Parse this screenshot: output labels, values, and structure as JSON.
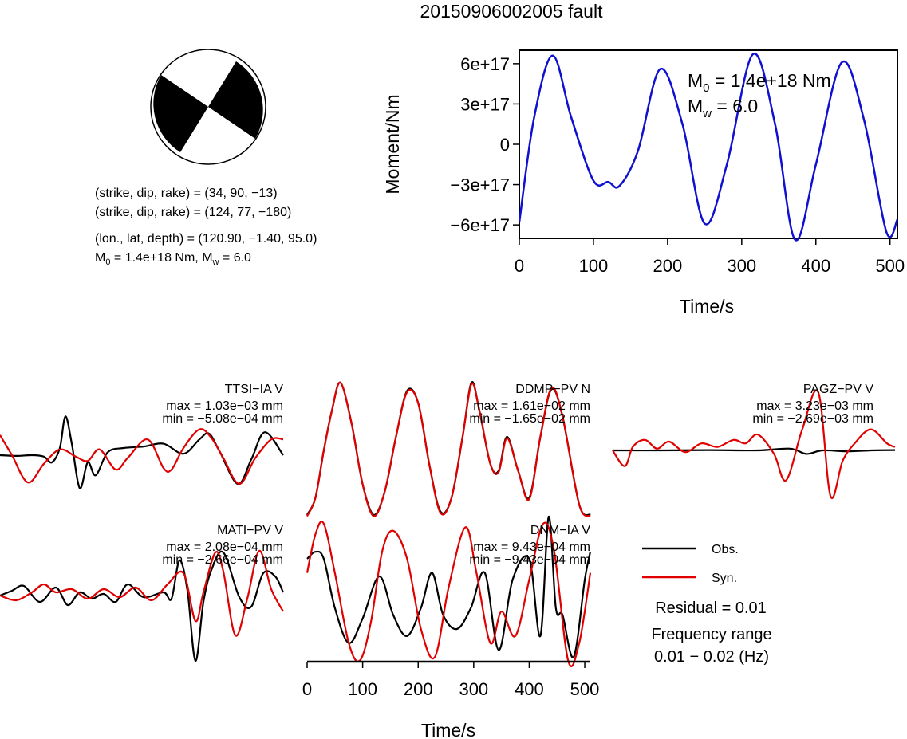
{
  "title": "20150906002005 fault",
  "mechanism": {
    "plane1": "(strike, dip, rake) = (34, 90, −13)",
    "plane2": "(strike, dip, rake) = (124, 77, −180)",
    "location": "(lon., lat, depth) = (120.90, −1.40, 95.0)",
    "m0_prefix": "M",
    "m0_sub": "0",
    "m0_value": " =  1.4e+18 Nm, M",
    "mw_sub": "w",
    "mw_value": " = 6.0"
  },
  "stf": {
    "ylabel": "Moment/Nm",
    "xlabel": "Time/s",
    "m0_label": "M",
    "m0_sub": "0",
    "m0_text": " =  1.4e+18 Nm",
    "mw_label": "M",
    "mw_sub": "w",
    "mw_text": " = 6.0"
  },
  "waveform_xlabel": "Time/s",
  "legend": {
    "obs": "Obs.",
    "syn": "Syn.",
    "residual": "Residual = 0.01",
    "freq_title": "Frequency range",
    "freq_value": "0.01 − 0.02 (Hz)"
  },
  "colors": {
    "obs": "#000000",
    "syn": "#e00000",
    "stf": "#1010d0"
  },
  "chart_data": [
    {
      "type": "line",
      "name": "source time function",
      "xlabel": "Time/s",
      "ylabel": "Moment/Nm",
      "xlim": [
        0,
        510
      ],
      "ylim": [
        -7e+17,
        7e+17
      ],
      "xticks": [
        0,
        100,
        200,
        300,
        400,
        500
      ],
      "yticks": [
        -6e+17,
        -3e+17,
        0,
        3e+17,
        6e+17
      ],
      "ytick_labels": [
        "−6e+17",
        "−3e+17",
        "0",
        "3e+17",
        "6e+17"
      ],
      "x": [
        0,
        20,
        45,
        70,
        100,
        120,
        135,
        160,
        190,
        220,
        250,
        280,
        315,
        345,
        372,
        400,
        435,
        465,
        495,
        510
      ],
      "y": [
        -5.8e+17,
        2e+17,
        6.6e+17,
        2e+17,
        -2.7e+17,
        -2.8e+17,
        -3.1e+17,
        -5e+16,
        5.6e+17,
        1.5e+17,
        -5.9e+17,
        -1.5e+17,
        6.7e+17,
        1.5e+17,
        -7.1e+17,
        -1.5e+17,
        6.1e+17,
        1.8e+17,
        -6.5e+17,
        -5.6e+17
      ]
    },
    {
      "type": "line",
      "station": "TTSI−IA V",
      "max": "max = 1.03e−03 mm",
      "min": "min = −5.08e−04 mm",
      "series": [
        {
          "name": "Obs.",
          "x": [
            0,
            20,
            40,
            55,
            65,
            75,
            82,
            90,
            100,
            110,
            120,
            135,
            155,
            180,
            205,
            230,
            250,
            262,
            275,
            298,
            315,
            332,
            355
          ],
          "y": [
            0,
            -0.05,
            0,
            -0.1,
            -0.5,
            0.5,
            2.7,
            0.8,
            -2.3,
            -0.5,
            -1.4,
            0.2,
            0.5,
            0.6,
            0.8,
            0.1,
            1.1,
            1.5,
            0.3,
            -2,
            -0.3,
            1.6,
            0
          ]
        },
        {
          "name": "Syn.",
          "x": [
            0,
            15,
            35,
            55,
            75,
            95,
            110,
            125,
            145,
            160,
            185,
            205,
            215,
            230,
            250,
            265,
            280,
            300,
            320,
            340,
            355
          ],
          "y": [
            1.4,
            0,
            -1.9,
            -0.6,
            0.4,
            -0.1,
            -0.4,
            0.4,
            -1,
            -0.2,
            1.1,
            -0.9,
            -1,
            0.5,
            1.8,
            1.2,
            -0.2,
            -2,
            -0.2,
            1.1,
            1.1
          ]
        }
      ]
    },
    {
      "type": "line",
      "station": "DDMP−PV N",
      "max": "max = 1.61e−02 mm",
      "min": "min = −1.65e−02 mm",
      "series": [
        {
          "name": "Obs.",
          "x": [
            0,
            15,
            30,
            45,
            60,
            80,
            100,
            120,
            140,
            160,
            180,
            200,
            220,
            240,
            260,
            280,
            296,
            310,
            330,
            345,
            360,
            380,
            400,
            420,
            440,
            460,
            490,
            510
          ],
          "y": [
            -0.95,
            -0.7,
            0,
            0.6,
            1,
            0.4,
            -0.5,
            -0.95,
            -0.6,
            0.2,
            0.88,
            0.7,
            -0.2,
            -0.9,
            -0.7,
            0.2,
            1,
            0.6,
            -0.2,
            -0.3,
            0.2,
            -0.3,
            -0.7,
            0.2,
            0.9,
            0.5,
            -0.8,
            -0.95
          ]
        },
        {
          "name": "Syn.",
          "x": [
            0,
            15,
            30,
            45,
            60,
            80,
            100,
            120,
            140,
            160,
            180,
            200,
            220,
            240,
            260,
            280,
            296,
            310,
            330,
            345,
            360,
            380,
            400,
            420,
            440,
            460,
            490,
            510
          ],
          "y": [
            -0.97,
            -0.7,
            0,
            0.6,
            1,
            0.4,
            -0.5,
            -0.97,
            -0.6,
            0.2,
            0.86,
            0.7,
            -0.2,
            -0.92,
            -0.7,
            0.2,
            0.98,
            0.6,
            -0.2,
            -0.32,
            0.18,
            -0.3,
            -0.72,
            0.2,
            0.92,
            0.5,
            -0.8,
            -0.97
          ]
        }
      ]
    },
    {
      "type": "line",
      "station": "PAGZ−PV V",
      "max": "max = 3.23e−03 mm",
      "min": "min = −2.69e−03 mm",
      "series": [
        {
          "name": "Obs.",
          "x": [
            0,
            60,
            120,
            180,
            220,
            240,
            260,
            290,
            320,
            350
          ],
          "y": [
            0,
            0,
            0.02,
            0,
            0.1,
            -0.2,
            0,
            -0.05,
            0,
            0.02
          ]
        },
        {
          "name": "Syn.",
          "x": [
            0,
            15,
            25,
            40,
            55,
            70,
            90,
            110,
            130,
            150,
            165,
            180,
            200,
            215,
            235,
            255,
            270,
            285,
            300,
            320,
            340,
            350
          ],
          "y": [
            0,
            -0.9,
            0.2,
            0.6,
            0.1,
            0.5,
            -0.1,
            0.4,
            0.2,
            0.6,
            0.4,
            0.9,
            -0.2,
            -1.7,
            1.2,
            3.3,
            -2.6,
            -0.6,
            0.4,
            1.2,
            0.4,
            0.2
          ]
        }
      ]
    },
    {
      "type": "line",
      "station": "MATI−PV V",
      "max": "max = 2.08e−04 mm",
      "min": "min = −2.66e−04 mm",
      "series": [
        {
          "name": "Obs.",
          "x": [
            0,
            15,
            30,
            50,
            70,
            85,
            100,
            115,
            130,
            145,
            160,
            180,
            205,
            215,
            225,
            235,
            245,
            255,
            265,
            280,
            300,
            315,
            330,
            345,
            355
          ],
          "y": [
            0,
            0.3,
            0.6,
            -0.4,
            0.5,
            -0.6,
            0.2,
            -0.2,
            0.1,
            -0.4,
            0.7,
            -0.1,
            0.2,
            -0.2,
            2.2,
            0.3,
            -4.1,
            -0.4,
            1.6,
            2.7,
            -0.1,
            -0.7,
            1.4,
            1.2,
            0.2
          ]
        },
        {
          "name": "Syn.",
          "x": [
            0,
            20,
            40,
            55,
            70,
            90,
            110,
            130,
            150,
            170,
            190,
            210,
            230,
            245,
            255,
            270,
            280,
            295,
            310,
            325,
            340,
            355
          ],
          "y": [
            0,
            -0.3,
            0.2,
            0.7,
            0.2,
            0.4,
            -0.2,
            0.4,
            -0.1,
            0.5,
            -0.3,
            0.7,
            1.4,
            -1.6,
            0.2,
            2.7,
            1.5,
            -2.5,
            -0.2,
            2.8,
            0.4,
            -1
          ]
        }
      ]
    },
    {
      "type": "line",
      "station": "DNM−IA V",
      "max": "max = 9.43e−04 mm",
      "min": "min = −9.43e−04 mm",
      "series": [
        {
          "name": "Obs.",
          "x": [
            0,
            15,
            30,
            50,
            75,
            100,
            130,
            155,
            180,
            205,
            225,
            245,
            270,
            295,
            320,
            345,
            370,
            400,
            420,
            435,
            448,
            460,
            480,
            500,
            510
          ],
          "y": [
            0.5,
            0.6,
            0.5,
            -0.2,
            -0.7,
            -0.35,
            0.25,
            -0.3,
            -0.6,
            -0.2,
            0.3,
            -0.3,
            -0.5,
            -0.2,
            0.3,
            -0.8,
            0.2,
            0.5,
            -0.6,
            1.1,
            -0.2,
            -0.3,
            -0.9,
            0.2,
            0.6
          ]
        },
        {
          "name": "Syn.",
          "x": [
            0,
            15,
            30,
            50,
            75,
            95,
            115,
            135,
            155,
            180,
            205,
            230,
            255,
            285,
            305,
            330,
            350,
            375,
            400,
            425,
            445,
            470,
            490,
            510
          ],
          "y": [
            0.3,
            0.85,
            1,
            0.3,
            -0.7,
            -0.95,
            -0.4,
            0.6,
            0.9,
            0.5,
            -0.5,
            -0.9,
            0.1,
            0.95,
            0.3,
            -0.7,
            -0.25,
            -0.6,
            0.2,
            1,
            0.6,
            -0.95,
            -0.7,
            0.3
          ]
        }
      ]
    }
  ]
}
